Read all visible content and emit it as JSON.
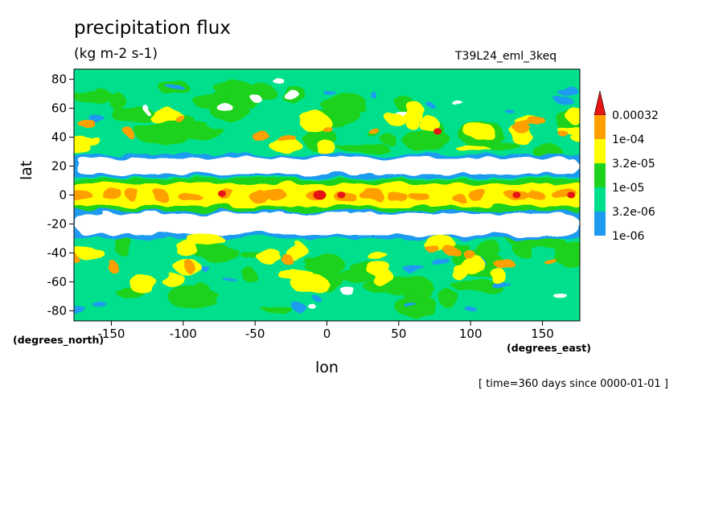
{
  "header": {
    "title": "precipitation flux",
    "units": "(kg m-2 s-1)",
    "run_id": "T39L24_eml_3keq"
  },
  "footer": {
    "time_info": "[ time=360 days since 0000-01-01 ]"
  },
  "chart_data": {
    "type": "heatmap",
    "title": "precipitation flux",
    "subtitle": "(kg m-2 s-1)",
    "xlabel": "lon",
    "ylabel": "lat",
    "x_units": "(degrees_east)",
    "y_units": "(degrees_north)",
    "xlim": [
      -176,
      176
    ],
    "ylim": [
      -87,
      87
    ],
    "x_ticks": [
      -150,
      -100,
      -50,
      0,
      50,
      100,
      150
    ],
    "y_ticks": [
      -80,
      -60,
      -40,
      -20,
      0,
      20,
      40,
      60,
      80
    ],
    "x_tick_labels": [
      "-150",
      "-100",
      "-50",
      "0",
      "50",
      "100",
      "150"
    ],
    "y_tick_labels": [
      "-80",
      "-60",
      "-40",
      "-20",
      "0",
      "20",
      "40",
      "60",
      "80"
    ],
    "grid": false,
    "colorbar": {
      "levels": [
        "1e-06",
        "3.2e-06",
        "1e-05",
        "3.2e-05",
        "1e-04",
        "0.00032"
      ],
      "colors": [
        "#ffffff",
        "#1e9bf0",
        "#00e08c",
        "#1ed21e",
        "#ffff00",
        "#ffa000",
        "#e61414"
      ]
    },
    "features": {
      "equatorial_band_lat": 0,
      "dry_zone_north_lat": 20,
      "dry_zone_south_lat": -20,
      "red_maxima": [
        {
          "lon": -73,
          "lat": 1
        },
        {
          "lon": -5,
          "lat": 0
        },
        {
          "lon": 10,
          "lat": 0
        },
        {
          "lon": 77,
          "lat": 44
        },
        {
          "lon": 132,
          "lat": 0
        },
        {
          "lon": 170,
          "lat": 0
        }
      ]
    }
  }
}
